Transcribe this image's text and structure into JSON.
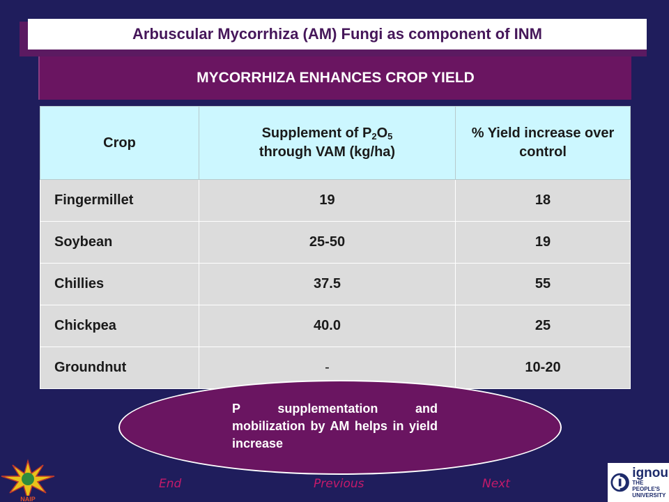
{
  "header": {
    "title": "Arbuscular Mycorrhiza (AM) Fungi as component of INM",
    "subtitle": "MYCORRHIZA ENHANCES CROP YIELD"
  },
  "table": {
    "headers": {
      "crop": "Crop",
      "supplement_prefix": "Supplement of P",
      "supplement_sub1": "2",
      "supplement_mid": "O",
      "supplement_sub2": "5",
      "supplement_suffix": "through VAM (kg/ha)",
      "yield": "% Yield increase over control"
    },
    "rows": [
      {
        "crop": "Fingermillet",
        "supplement": "19",
        "yield": "18"
      },
      {
        "crop": "Soybean",
        "supplement": "25-50",
        "yield": "19"
      },
      {
        "crop": "Chillies",
        "supplement": "37.5",
        "yield": "55"
      },
      {
        "crop": "Chickpea",
        "supplement": "40.0",
        "yield": "25"
      },
      {
        "crop": "Groundnut",
        "supplement": "-",
        "yield": "10-20"
      }
    ]
  },
  "callout": {
    "text": "P supplementation and mobilization by AM helps in yield increase"
  },
  "nav": {
    "end": "End",
    "previous": "Previous",
    "next": "Next"
  },
  "logos": {
    "left_label": "NAIP",
    "right_brand": "ignou",
    "right_tag_line1": "THE PEOPLE'S",
    "right_tag_line2": "UNIVERSITY"
  },
  "colors": {
    "background": "#1f1d5c",
    "banner_purple": "#6a1561",
    "header_cell": "#ccf7ff",
    "body_cell": "#dcdcdc",
    "nav_link": "#c51a6a"
  }
}
